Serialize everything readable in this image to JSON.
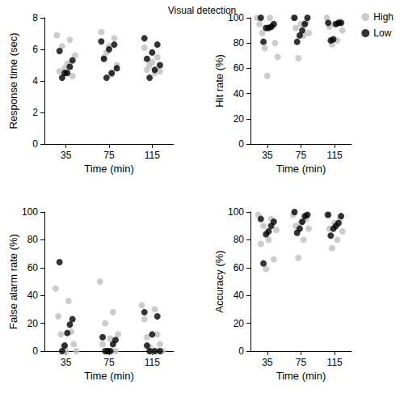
{
  "title": "Visual detection",
  "chart_data": [
    {
      "type": "scatter",
      "x_label": "Time (min)",
      "y_label": "Response time (sec)",
      "categories": [
        "35",
        "75",
        "115"
      ],
      "ylim": [
        0,
        8
      ],
      "yticks": [
        0,
        2,
        4,
        6,
        8
      ],
      "series": [
        {
          "name": "High",
          "color": "#bfbfbf",
          "marker": "circle",
          "values": [
            [
              6.9,
              6.6,
              6.2,
              5.6,
              5.1,
              4.6,
              4.3,
              4.8
            ],
            [
              7.1,
              6.7,
              6.2,
              5.5,
              5.0,
              4.4,
              5.8
            ],
            [
              6.1,
              5.5,
              5.2,
              4.7,
              4.6,
              4.5,
              5.0
            ]
          ]
        },
        {
          "name": "Low",
          "color": "#000000",
          "marker": "circle",
          "values": [
            [
              5.9,
              5.3,
              4.9,
              4.5,
              4.5,
              4.2
            ],
            [
              6.5,
              6.3,
              6.0,
              5.4,
              4.8,
              4.5,
              4.2
            ],
            [
              6.7,
              6.3,
              5.8,
              5.4,
              5.0,
              4.7,
              4.2
            ]
          ]
        }
      ]
    },
    {
      "type": "scatter",
      "x_label": "Time (min)",
      "y_label": "Hit rate (%)",
      "categories": [
        "35",
        "75",
        "115"
      ],
      "ylim": [
        0,
        100
      ],
      "yticks": [
        0,
        20,
        40,
        60,
        80,
        100
      ],
      "legend": "upper right",
      "series": [
        {
          "name": "High",
          "color": "#bfbfbf",
          "marker": "circle",
          "values": [
            [
              100,
              100,
              95,
              93,
              88,
              80,
              76,
              69,
              54
            ],
            [
              100,
              97,
              95,
              92,
              88,
              86,
              68
            ],
            [
              100,
              97,
              95,
              93,
              90,
              82,
              79
            ]
          ]
        },
        {
          "name": "Low",
          "color": "#000000",
          "marker": "circle",
          "values": [
            [
              100,
              95,
              93,
              92,
              92,
              81
            ],
            [
              100,
              100,
              95,
              90,
              86,
              81
            ],
            [
              96,
              96,
              96,
              95,
              83,
              82
            ]
          ]
        }
      ]
    },
    {
      "type": "scatter",
      "x_label": "Time (min)",
      "y_label": "False alarm rate (%)",
      "categories": [
        "35",
        "75",
        "115"
      ],
      "ylim": [
        0,
        100
      ],
      "yticks": [
        0,
        20,
        40,
        60,
        80,
        100
      ],
      "series": [
        {
          "name": "High",
          "color": "#bfbfbf",
          "marker": "circle",
          "values": [
            [
              45,
              36,
              25,
              14,
              12,
              5,
              3,
              0,
              0
            ],
            [
              50,
              28,
              20,
              12,
              9,
              5,
              0,
              0
            ],
            [
              33,
              30,
              23,
              12,
              10,
              5,
              3,
              0,
              0
            ]
          ]
        },
        {
          "name": "Low",
          "color": "#000000",
          "marker": "circle",
          "values": [
            [
              64,
              23,
              19,
              13,
              4,
              0
            ],
            [
              10,
              8,
              5,
              0,
              0,
              0
            ],
            [
              28,
              25,
              12,
              4,
              0,
              0,
              0
            ]
          ]
        }
      ]
    },
    {
      "type": "scatter",
      "x_label": "Time (min)",
      "y_label": "Accuracy (%)",
      "categories": [
        "35",
        "75",
        "115"
      ],
      "ylim": [
        0,
        100
      ],
      "yticks": [
        0,
        20,
        40,
        60,
        80,
        100
      ],
      "series": [
        {
          "name": "High",
          "color": "#bfbfbf",
          "marker": "circle",
          "values": [
            [
              98,
              95,
              90,
              87,
              80,
              77,
              66,
              59
            ],
            [
              98,
              95,
              92,
              90,
              88,
              80,
              67
            ],
            [
              98,
              95,
              92,
              88,
              86,
              80,
              74
            ]
          ]
        },
        {
          "name": "Low",
          "color": "#000000",
          "marker": "circle",
          "values": [
            [
              95,
              93,
              90,
              86,
              84,
              63
            ],
            [
              100,
              98,
              97,
              93,
              88,
              85
            ],
            [
              98,
              97,
              92,
              90,
              88,
              83
            ]
          ]
        }
      ]
    }
  ]
}
